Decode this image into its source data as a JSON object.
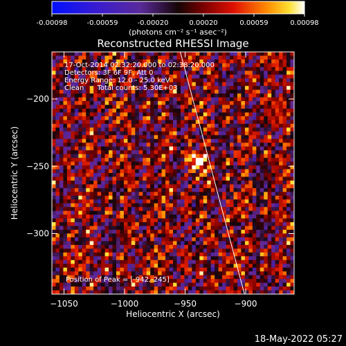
{
  "colorbar": {
    "ticks": [
      "-0.00098",
      "-0.00059",
      "-0.00020",
      "0.00020",
      "0.00059",
      "0.00098"
    ],
    "units": "(photons cm⁻² s⁻¹ asec⁻²)"
  },
  "header": {
    "title": "Reconstructed RHESSI Image",
    "line1": "17-Oct-2014 02:32:20.000 to 02:38:20.000",
    "line2": "Detectors: 3F 6F 9F, Att 0",
    "line3": "Energy Range: 12.0 - 25.0 keV",
    "line4": "Clean      Total counts: 5.30E+03",
    "peak": "Position of Peak = [-942,-245]"
  },
  "footer": {
    "timestamp": "18-May-2022 05:27"
  },
  "colors": {
    "background": "#000000",
    "line": "#ffffff"
  },
  "chart_data": {
    "type": "heatmap",
    "title": "Reconstructed RHESSI Image",
    "xlabel": "Heliocentric X (arcsec)",
    "ylabel": "Heliocentric Y (arcsec)",
    "xlim": [
      -1060,
      -860
    ],
    "ylim": [
      -345,
      -165
    ],
    "x_ticks": [
      -1050,
      -1000,
      -950,
      -900
    ],
    "y_ticks": [
      -200,
      -250,
      -300
    ],
    "x_tick_labels": [
      "−1050",
      "−1000",
      "−950",
      "−900"
    ],
    "y_tick_labels": [
      "−200",
      "−250",
      "−300"
    ],
    "colorbar_range": [
      -0.00098,
      0.00098
    ],
    "colormap": "red-temperature",
    "peak": {
      "x": -942,
      "y": -245
    },
    "limb_line": [
      [
        -954,
        -165
      ],
      [
        -901,
        -345
      ]
    ],
    "grid": false,
    "legend": "none"
  }
}
